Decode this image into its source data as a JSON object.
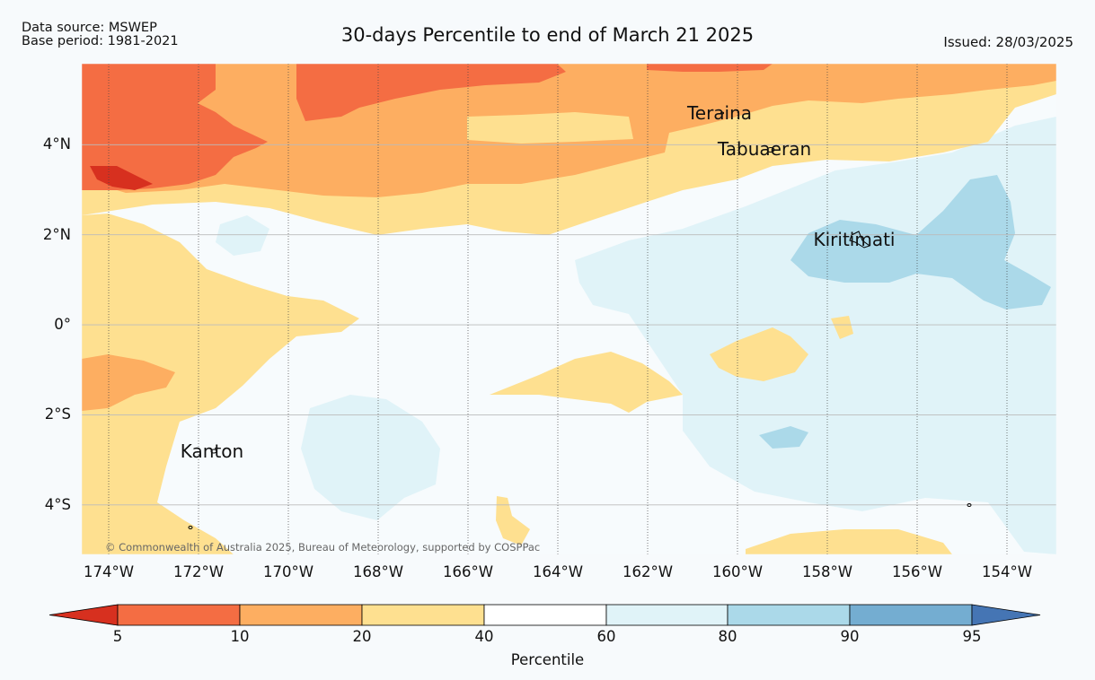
{
  "header": {
    "source": "Data source: MSWEP",
    "base_period": "Base period: 1981-2021",
    "title": "30-days Percentile to end of March 21 2025",
    "issued": "Issued: 28/03/2025"
  },
  "map": {
    "extent": {
      "lon": [
        -174.6,
        -152.9
      ],
      "lat": [
        -5.1,
        5.8
      ]
    },
    "lat_ticks": [
      {
        "value": 4,
        "label": "4°N"
      },
      {
        "value": 2,
        "label": "2°N"
      },
      {
        "value": 0,
        "label": "0°"
      },
      {
        "value": -2,
        "label": "2°S"
      },
      {
        "value": -4,
        "label": "4°S"
      }
    ],
    "lon_ticks": [
      {
        "value": -174,
        "label": "174°W"
      },
      {
        "value": -172,
        "label": "172°W"
      },
      {
        "value": -170,
        "label": "170°W"
      },
      {
        "value": -168,
        "label": "168°W"
      },
      {
        "value": -166,
        "label": "166°W"
      },
      {
        "value": -164,
        "label": "164°W"
      },
      {
        "value": -162,
        "label": "162°W"
      },
      {
        "value": -160,
        "label": "160°W"
      },
      {
        "value": -158,
        "label": "158°W"
      },
      {
        "value": -156,
        "label": "156°W"
      },
      {
        "value": -154,
        "label": "154°W"
      }
    ],
    "places": [
      {
        "name": "Teraina",
        "lon": -160.4,
        "lat": 4.7
      },
      {
        "name": "Tabuaeran",
        "lon": -159.4,
        "lat": 3.9
      },
      {
        "name": "Kiritimati",
        "lon": -157.4,
        "lat": 1.9
      },
      {
        "name": "Kanton",
        "lon": -171.7,
        "lat": -2.8
      }
    ],
    "copyright": "© Commonwealth of Australia 2025, Bureau of Meteorology, supported by COSPPac"
  },
  "colorbar": {
    "label": "Percentile",
    "ticks": [
      "5",
      "10",
      "20",
      "40",
      "60",
      "80",
      "90",
      "95"
    ],
    "colors": [
      "#d7301f",
      "#f46d43",
      "#fdae61",
      "#fee090",
      "#ffffff",
      "#e0f3f8",
      "#abd9e9",
      "#74add1",
      "#4575b4"
    ]
  }
}
